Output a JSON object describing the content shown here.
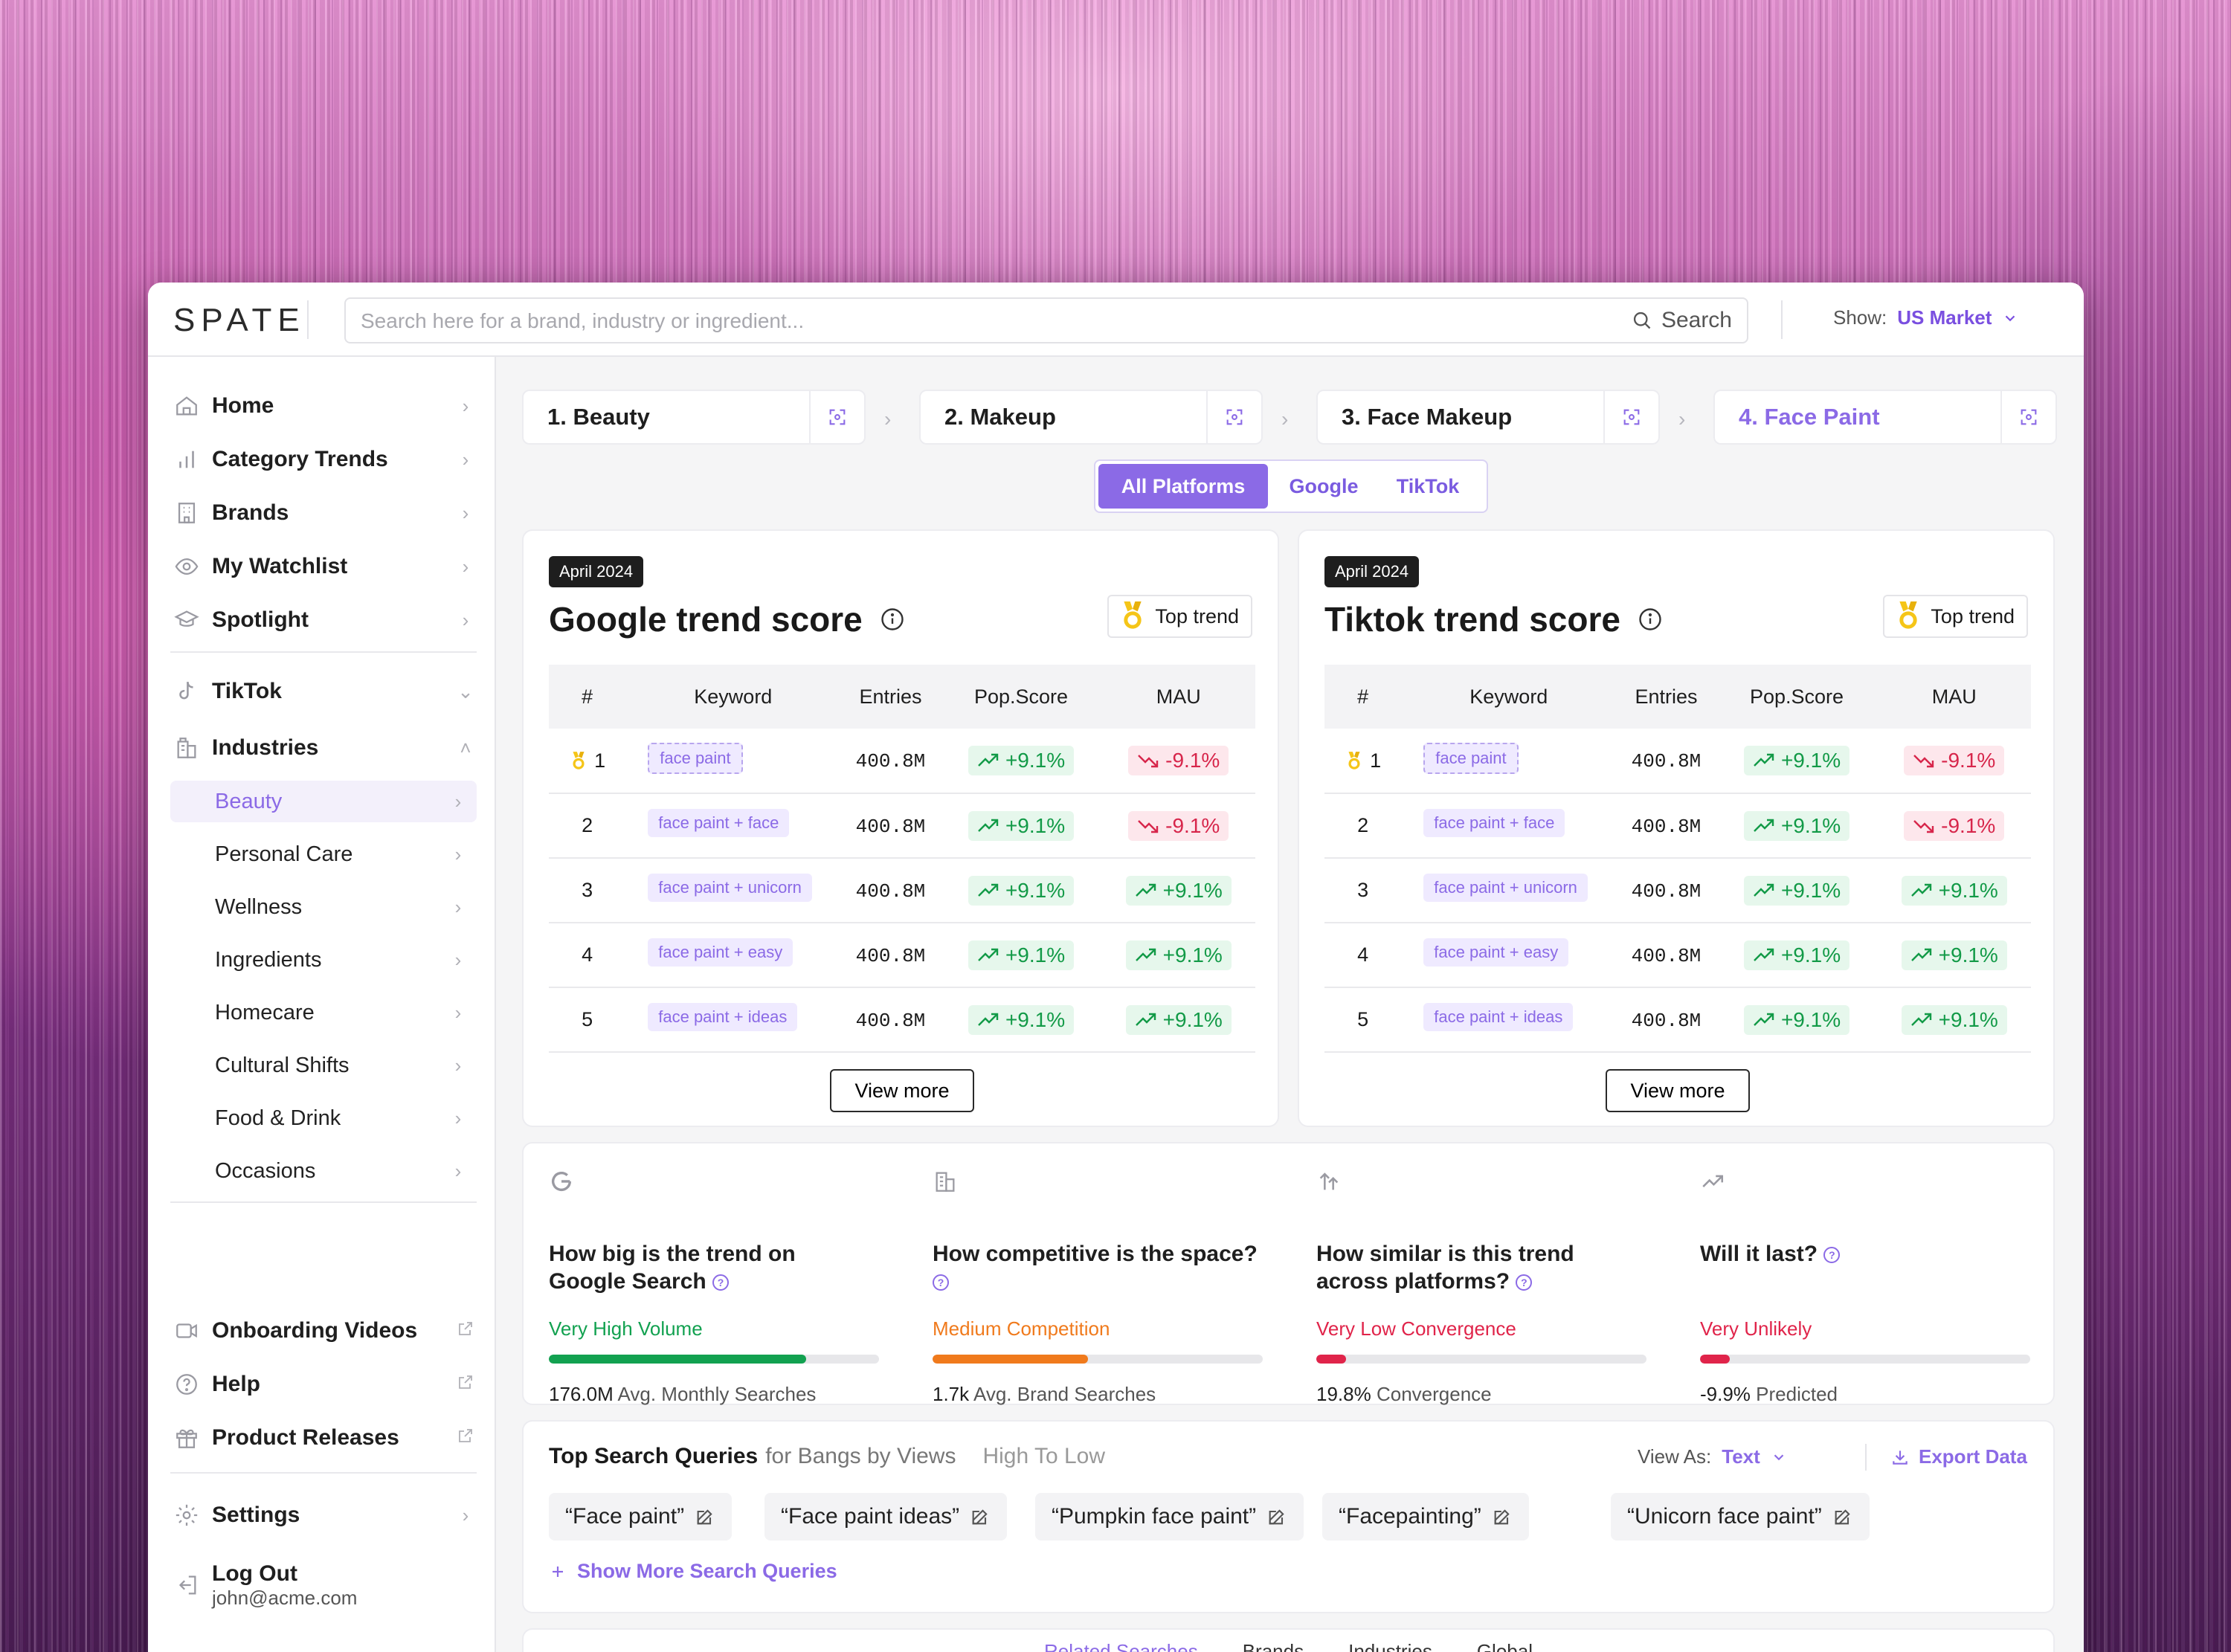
{
  "app": {
    "logo": "SPATE"
  },
  "search": {
    "placeholder": "Search here for a brand, industry or ingredient...",
    "button": "Search"
  },
  "market": {
    "label": "Show:",
    "value": "US Market"
  },
  "sidebar": {
    "main": [
      {
        "label": "Home",
        "icon": "home-icon"
      },
      {
        "label": "Category Trends",
        "icon": "bar-chart-icon"
      },
      {
        "label": "Brands",
        "icon": "building-icon"
      },
      {
        "label": "My Watchlist",
        "icon": "eye-icon"
      },
      {
        "label": "Spotlight",
        "icon": "spotlight-icon"
      }
    ],
    "tiktok": "TikTok",
    "industries": "Industries",
    "industry_items": [
      "Beauty",
      "Personal Care",
      "Wellness",
      "Ingredients",
      "Homecare",
      "Cultural Shifts",
      "Food & Drink",
      "Occasions"
    ],
    "active_industry": "Beauty",
    "external": [
      "Onboarding Videos",
      "Help",
      "Product Releases"
    ],
    "settings": "Settings",
    "logout": "Log Out",
    "email": "john@acme.com"
  },
  "breadcrumbs": [
    "1. Beauty",
    "2. Makeup",
    "3. Face Makeup",
    "4. Face Paint"
  ],
  "platforms": {
    "options": [
      "All Platforms",
      "Google",
      "TikTok"
    ],
    "selected": "All Platforms"
  },
  "google_card": {
    "date": "April 2024",
    "title": "Google trend score",
    "top_trend": "Top trend",
    "headers": [
      "#",
      "Keyword",
      "Entries",
      "Pop.Score",
      "MAU"
    ],
    "rows": [
      {
        "rank": "1",
        "keyword": "face paint",
        "entries": "400.8M",
        "pop": "+9.1%",
        "mau": "-9.1%"
      },
      {
        "rank": "2",
        "keyword": "face paint + face",
        "entries": "400.8M",
        "pop": "+9.1%",
        "mau": "-9.1%"
      },
      {
        "rank": "3",
        "keyword": "face paint + unicorn",
        "entries": "400.8M",
        "pop": "+9.1%",
        "mau": "+9.1%"
      },
      {
        "rank": "4",
        "keyword": "face paint + easy",
        "entries": "400.8M",
        "pop": "+9.1%",
        "mau": "+9.1%"
      },
      {
        "rank": "5",
        "keyword": "face paint + ideas",
        "entries": "400.8M",
        "pop": "+9.1%",
        "mau": "+9.1%"
      }
    ],
    "view_more": "View more"
  },
  "tiktok_card": {
    "date": "April 2024",
    "title": "Tiktok trend score",
    "top_trend": "Top trend",
    "headers": [
      "#",
      "Keyword",
      "Entries",
      "Pop.Score",
      "MAU"
    ],
    "rows": [
      {
        "rank": "1",
        "keyword": "face paint",
        "entries": "400.8M",
        "pop": "+9.1%",
        "mau": "-9.1%"
      },
      {
        "rank": "2",
        "keyword": "face paint + face",
        "entries": "400.8M",
        "pop": "+9.1%",
        "mau": "-9.1%"
      },
      {
        "rank": "3",
        "keyword": "face paint + unicorn",
        "entries": "400.8M",
        "pop": "+9.1%",
        "mau": "+9.1%"
      },
      {
        "rank": "4",
        "keyword": "face paint + easy",
        "entries": "400.8M",
        "pop": "+9.1%",
        "mau": "+9.1%"
      },
      {
        "rank": "5",
        "keyword": "face paint + ideas",
        "entries": "400.8M",
        "pop": "+9.1%",
        "mau": "+9.1%"
      }
    ],
    "view_more": "View more"
  },
  "metrics": [
    {
      "icon": "google-icon",
      "question": "How big is the trend on Google Search",
      "level": "Very High Volume",
      "level_color": "#12a150",
      "fill": 0.78,
      "value": "176.0M",
      "caption": "Avg. Monthly Searches"
    },
    {
      "icon": "buildings-icon",
      "question": "How competitive is the space?",
      "level": "Medium Competition",
      "level_color": "#f07a1c",
      "fill": 0.47,
      "value": "1.7k",
      "caption": "Avg. Brand Searches"
    },
    {
      "icon": "arrows-up-icon",
      "question": "How similar is this trend across platforms?",
      "level": "Very Low Convergence",
      "level_color": "#e0244a",
      "fill": 0.09,
      "value": "19.8%",
      "caption": "Convergence"
    },
    {
      "icon": "trend-up-icon",
      "question": "Will it last?",
      "level": "Very Unlikely",
      "level_color": "#e0244a",
      "fill": 0.09,
      "value": "-9.9%",
      "caption": "Predicted"
    }
  ],
  "queries": {
    "title": "Top Search Queries",
    "context": "for Bangs by Views",
    "sort": "High To Low",
    "view_as_label": "View As:",
    "view_as_value": "Text",
    "export": "Export Data",
    "items": [
      "“Face paint”",
      "“Face paint ideas”",
      "“Pumpkin face paint”",
      "“Facepainting”",
      "“Unicorn face paint”"
    ],
    "show_more": "Show More Search Queries"
  },
  "bottom_tabs": [
    "Related Searches",
    "Brands",
    "Industries",
    "Global"
  ],
  "colors": {
    "accent": "#8b6ae6",
    "up": "#129a47",
    "down": "#d7264b"
  }
}
